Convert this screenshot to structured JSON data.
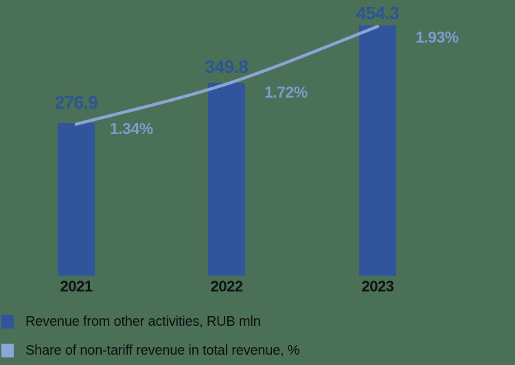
{
  "background_color": "#4A7058",
  "colors": {
    "bar": "#31559C",
    "value_label": "#2D5594",
    "line": "#8AA4D3",
    "pct_label": "#7F9BCC",
    "axis_text": "#121212",
    "legend_text": "#0F0F0F",
    "legend_swatch_bar": "#31559C",
    "legend_swatch_line": "#8BA7D6"
  },
  "chart_data": {
    "type": "bar+line",
    "categories": [
      "2021",
      "2022",
      "2023"
    ],
    "series": [
      {
        "name": "Revenue from other activities, RUB mln",
        "type": "bar",
        "values": [
          276.9,
          349.8,
          454.3
        ],
        "labels": [
          "276.9",
          "349.8",
          "454.3"
        ]
      },
      {
        "name": "Share of non-tariff revenue in total revenue, %",
        "type": "line",
        "values": [
          1.34,
          1.72,
          1.93
        ],
        "labels": [
          "1.34%",
          "1.72%",
          "1.93%"
        ]
      }
    ],
    "ylim": [
      0,
      455
    ],
    "grid": false,
    "axes_visible": false,
    "legend_position": "bottom-left"
  },
  "legend": {
    "items": [
      {
        "label": "Revenue from other activities, RUB mln",
        "color": "#31559C"
      },
      {
        "label": "Share of non-tariff revenue in total revenue, %",
        "color": "#8BA7D6"
      }
    ]
  }
}
